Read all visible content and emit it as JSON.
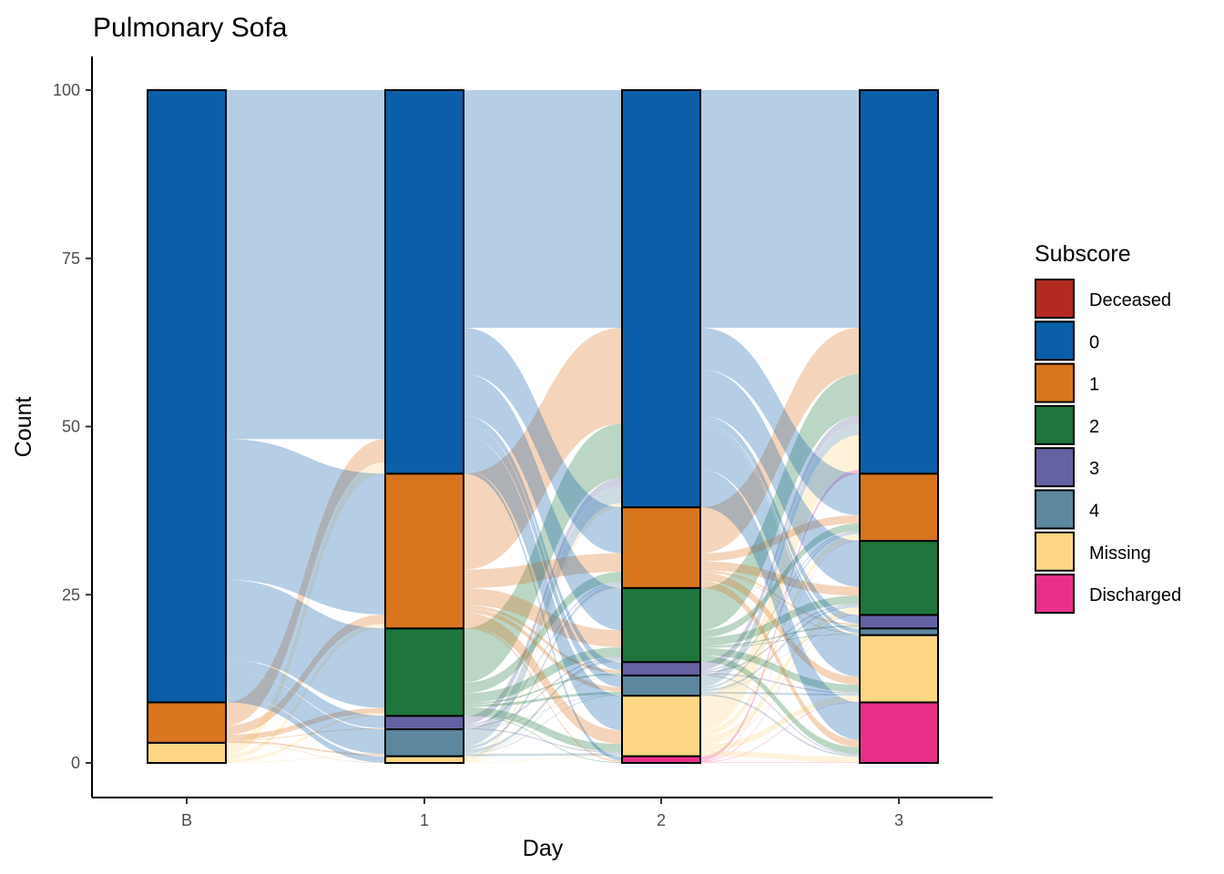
{
  "chart_data": {
    "type": "alluvial",
    "title": "Pulmonary Sofa",
    "xlabel": "Day",
    "ylabel": "Count",
    "ylim": [
      0,
      100
    ],
    "yticks": [
      0,
      25,
      50,
      75,
      100
    ],
    "categories": [
      "B",
      "1",
      "2",
      "3"
    ],
    "legend": {
      "title": "Subscore",
      "position": "right",
      "items": [
        {
          "name": "Deceased",
          "color": "#B22A22"
        },
        {
          "name": "0",
          "color": "#0B5EA8"
        },
        {
          "name": "1",
          "color": "#D9751E"
        },
        {
          "name": "2",
          "color": "#1E763C"
        },
        {
          "name": "3",
          "color": "#6562A3"
        },
        {
          "name": "4",
          "color": "#5D879E"
        },
        {
          "name": "Missing",
          "color": "#FDD784"
        },
        {
          "name": "Discharged",
          "color": "#E8308A"
        }
      ]
    },
    "stack_order_bottom_to_top": [
      "Deceased",
      "Discharged",
      "Missing",
      "4",
      "3",
      "2",
      "1",
      "0"
    ],
    "columns": [
      {
        "day": "B",
        "counts": {
          "Missing": 3,
          "1": 6,
          "0": 91
        }
      },
      {
        "day": "1",
        "counts": {
          "Missing": 1,
          "4": 4,
          "3": 2,
          "2": 13,
          "1": 23,
          "0": 57
        }
      },
      {
        "day": "2",
        "counts": {
          "Discharged": 1,
          "Missing": 9,
          "4": 3,
          "3": 2,
          "2": 11,
          "1": 12,
          "0": 62
        }
      },
      {
        "day": "3",
        "counts": {
          "Discharged": 9,
          "Missing": 10,
          "4": 1,
          "3": 2,
          "2": 11,
          "1": 10,
          "0": 57
        }
      }
    ],
    "grid": false
  }
}
